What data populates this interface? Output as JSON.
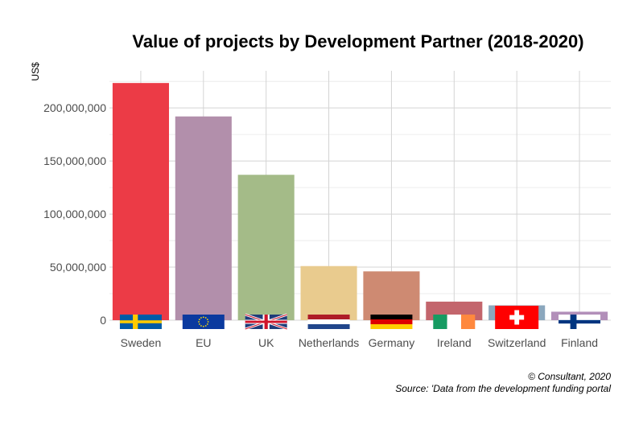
{
  "chart_data": {
    "type": "bar",
    "title": "Value of projects by Development Partner (2018-2020)",
    "ylabel": "US$",
    "xlabel": "",
    "categories": [
      "Sweden",
      "EU",
      "UK",
      "Netherlands",
      "Germany",
      "Ireland",
      "Switzerland",
      "Finland"
    ],
    "values": [
      223500000,
      192000000,
      137000000,
      51000000,
      46000000,
      17500000,
      14000000,
      8000000
    ],
    "colors": [
      "#ec3b46",
      "#b28fab",
      "#a4bb88",
      "#e9cb8e",
      "#ce8a72",
      "#c3656c",
      "#8ba7bd",
      "#b28fb9"
    ],
    "flag_icons": [
      "sweden-flag-icon",
      "eu-flag-icon",
      "uk-flag-icon",
      "netherlands-flag-icon",
      "germany-flag-icon",
      "ireland-flag-icon",
      "switzerland-flag-icon",
      "finland-flag-icon"
    ],
    "ylim": [
      0,
      235000000
    ],
    "yticks": [
      0,
      50000000,
      100000000,
      150000000,
      200000000
    ],
    "ytick_labels": [
      "0",
      "50,000,000",
      "100,000,000",
      "150,000,000",
      "200,000,000"
    ],
    "grid": true,
    "caption_lines": [
      "© Consultant, 2020",
      "Source: 'Data from the development funding portal"
    ]
  }
}
